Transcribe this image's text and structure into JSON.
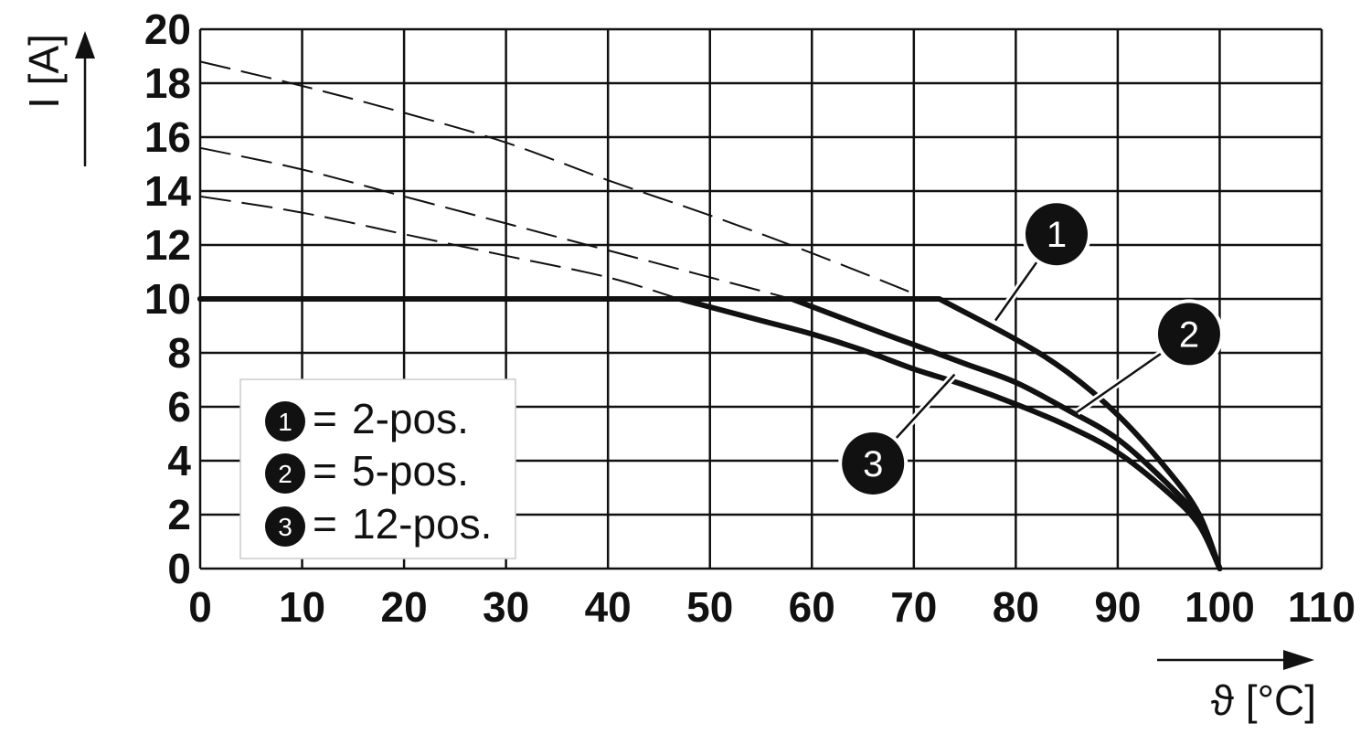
{
  "chart_data": {
    "type": "line",
    "xlabel": "ϑ [°C]",
    "ylabel": "I [A]",
    "xlim": [
      0,
      110
    ],
    "ylim": [
      0,
      20
    ],
    "x_ticks": [
      "0",
      "10",
      "20",
      "30",
      "40",
      "50",
      "60",
      "70",
      "80",
      "90",
      "100",
      "110"
    ],
    "y_ticks": [
      "0",
      "2",
      "4",
      "6",
      "8",
      "10",
      "12",
      "14",
      "16",
      "18",
      "20"
    ],
    "grid": true,
    "legend_position": "bottom-left",
    "series": [
      {
        "name": "2-pos.",
        "marker": "1",
        "solid": [
          [
            0,
            10
          ],
          [
            72.5,
            10
          ],
          [
            80,
            8.5
          ],
          [
            85,
            7.3
          ],
          [
            90,
            5.7
          ],
          [
            95,
            3.6
          ],
          [
            98,
            2.0
          ],
          [
            100,
            0
          ]
        ],
        "dashed": [
          [
            0,
            18.8
          ],
          [
            10,
            17.9
          ],
          [
            20,
            16.9
          ],
          [
            30,
            15.8
          ],
          [
            40,
            14.4
          ],
          [
            50,
            13.1
          ],
          [
            60,
            11.7
          ],
          [
            70,
            10.2
          ]
        ]
      },
      {
        "name": "5-pos.",
        "marker": "2",
        "solid": [
          [
            0,
            10
          ],
          [
            58,
            10
          ],
          [
            65,
            9.0
          ],
          [
            70,
            8.3
          ],
          [
            75,
            7.6
          ],
          [
            80,
            6.9
          ],
          [
            85,
            5.9
          ],
          [
            90,
            4.8
          ],
          [
            95,
            3.1
          ],
          [
            98,
            1.8
          ],
          [
            100,
            0
          ]
        ],
        "dashed": [
          [
            0,
            15.6
          ],
          [
            10,
            14.8
          ],
          [
            20,
            13.8
          ],
          [
            30,
            12.8
          ],
          [
            40,
            11.8
          ],
          [
            50,
            10.8
          ],
          [
            58,
            10
          ]
        ]
      },
      {
        "name": "12-pos.",
        "marker": "3",
        "solid": [
          [
            0,
            10
          ],
          [
            47,
            10
          ],
          [
            55,
            9.2
          ],
          [
            60,
            8.7
          ],
          [
            65,
            8.1
          ],
          [
            70,
            7.4
          ],
          [
            75,
            6.8
          ],
          [
            80,
            6.1
          ],
          [
            85,
            5.3
          ],
          [
            90,
            4.3
          ],
          [
            95,
            2.8
          ],
          [
            98,
            1.6
          ],
          [
            100,
            0
          ]
        ],
        "dashed": [
          [
            0,
            13.8
          ],
          [
            10,
            13.2
          ],
          [
            20,
            12.4
          ],
          [
            30,
            11.6
          ],
          [
            40,
            10.8
          ],
          [
            47,
            10
          ]
        ]
      }
    ],
    "legend": [
      {
        "marker": "1",
        "eq": "=",
        "label": "2-pos."
      },
      {
        "marker": "2",
        "eq": "=",
        "label": "5-pos."
      },
      {
        "marker": "3",
        "eq": "=",
        "label": "12-pos."
      }
    ],
    "callouts": [
      {
        "marker": "1",
        "at": [
          78,
          9.2
        ],
        "circle": [
          84,
          12.4
        ]
      },
      {
        "marker": "2",
        "at": [
          86,
          5.8
        ],
        "circle": [
          97,
          8.7
        ]
      },
      {
        "marker": "3",
        "at": [
          74,
          7.2
        ],
        "circle": [
          66,
          3.9
        ]
      }
    ],
    "colors": {
      "line": "#111111",
      "grid": "#111111",
      "marker_fill": "#111111",
      "marker_text": "#ffffff",
      "legend_border": "#cccccc"
    }
  }
}
